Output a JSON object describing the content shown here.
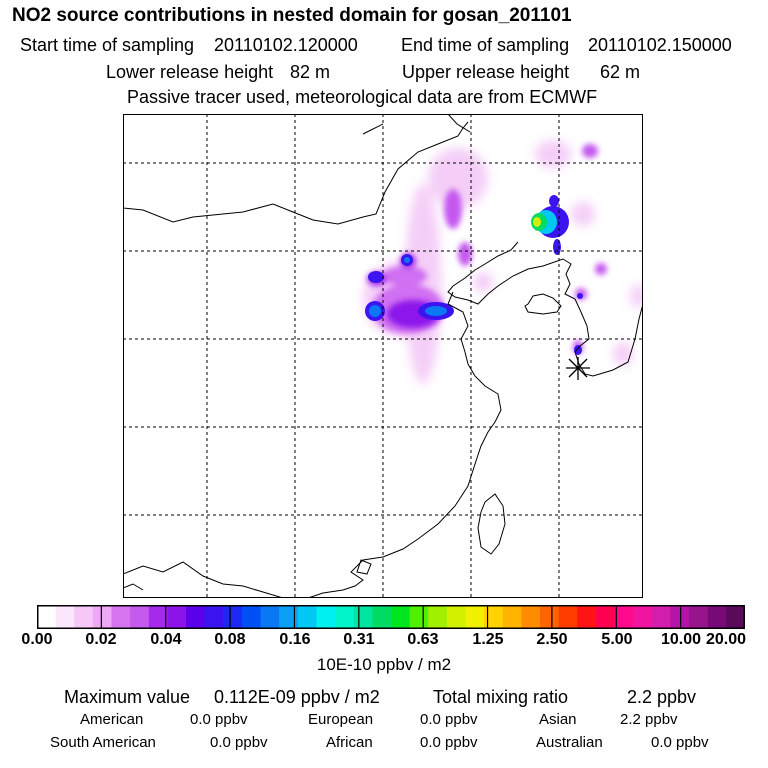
{
  "header": {
    "title": "NO2 source contributions in nested domain for gosan_201101",
    "start_label": "Start time of sampling",
    "start_value": "20110102.120000",
    "end_label": "End time of sampling",
    "end_value": "20110102.150000",
    "lower_label": "Lower release height",
    "lower_value": "82 m",
    "upper_label": "Upper release height",
    "upper_value": "62 m",
    "note": "Passive tracer used, meteorological data are from ECMWF"
  },
  "colorbar": {
    "colors": [
      "#ffffff",
      "#fce6fc",
      "#f5c8f8",
      "#eea8f5",
      "#d774f0",
      "#c45aee",
      "#a52aeb",
      "#8c14eb",
      "#5a00eb",
      "#3c14f0",
      "#1e28f5",
      "#0050f5",
      "#0a78f5",
      "#0aa0f5",
      "#00c8f5",
      "#00f0f0",
      "#00f5c8",
      "#00e6a0",
      "#00dc64",
      "#00e61e",
      "#50f000",
      "#a0f000",
      "#d2f000",
      "#f0f000",
      "#ffd200",
      "#ffb400",
      "#ff8c00",
      "#ff6400",
      "#ff3c00",
      "#ff1414",
      "#ff0050",
      "#ff0a8c",
      "#f014a0",
      "#d21eaa",
      "#b414aa",
      "#96148c",
      "#780a78",
      "#5a0a5a"
    ],
    "tick_labels": [
      "0.00",
      "0.02",
      "0.04",
      "0.08",
      "0.16",
      "0.31",
      "0.63",
      "1.25",
      "2.50",
      "5.00",
      "10.00",
      "20.00"
    ],
    "unit": "10E-10 ppbv / m2"
  },
  "summary": {
    "max_label": "Maximum value",
    "max_value": "0.112E-09 ppbv / m2",
    "total_label": "Total mixing ratio",
    "total_value": "2.2 ppbv",
    "regions": [
      {
        "name": "American",
        "value": "0.0 ppbv"
      },
      {
        "name": "European",
        "value": "0.0 ppbv"
      },
      {
        "name": "Asian",
        "value": "2.2 ppbv"
      },
      {
        "name": "South American",
        "value": "0.0 ppbv"
      },
      {
        "name": "African",
        "value": "0.0 ppbv"
      },
      {
        "name": "Australian",
        "value": "0.0 ppbv"
      }
    ]
  },
  "map": {
    "receptor_marker": "asterisk-icon"
  }
}
